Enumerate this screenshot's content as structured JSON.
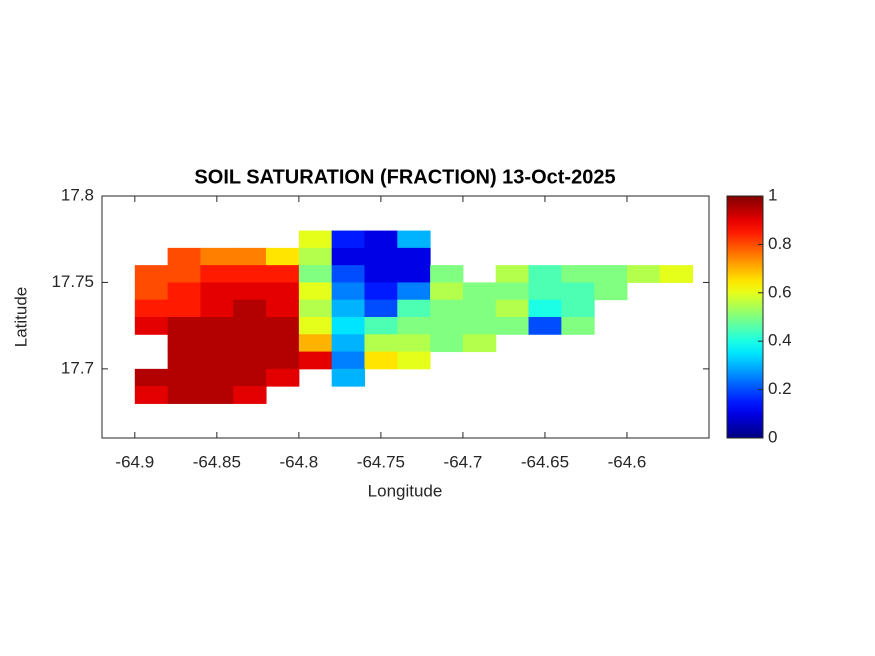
{
  "chart_data": {
    "type": "heatmap",
    "title": "SOIL SATURATION (FRACTION) 13-Oct-2025",
    "x_label": "Longitude",
    "y_label": "Latitude",
    "x": [
      -64.89,
      -64.87,
      -64.85,
      -64.83,
      -64.81,
      -64.79,
      -64.77,
      -64.75,
      -64.73,
      -64.71,
      -64.69,
      -64.67,
      -64.65,
      -64.63,
      -64.61,
      -64.59,
      -64.57
    ],
    "y": [
      17.775,
      17.765,
      17.755,
      17.745,
      17.735,
      17.725,
      17.715,
      17.705,
      17.695,
      17.685
    ],
    "values": [
      [
        null,
        null,
        null,
        null,
        null,
        0.6,
        0.15,
        0.1,
        0.3,
        null,
        null,
        null,
        null,
        null,
        null,
        null,
        null
      ],
      [
        null,
        0.8,
        0.75,
        0.75,
        0.65,
        0.55,
        0.1,
        0.1,
        0.1,
        null,
        null,
        null,
        null,
        null,
        null,
        null,
        null
      ],
      [
        0.8,
        0.8,
        0.85,
        0.85,
        0.85,
        0.5,
        0.2,
        0.1,
        0.1,
        0.5,
        null,
        0.55,
        0.45,
        0.5,
        0.5,
        0.55,
        0.6
      ],
      [
        0.8,
        0.85,
        0.9,
        0.9,
        0.9,
        0.6,
        0.25,
        0.15,
        0.25,
        0.55,
        0.5,
        0.5,
        0.45,
        0.45,
        0.5,
        null,
        null
      ],
      [
        0.85,
        0.85,
        0.9,
        0.95,
        0.9,
        0.55,
        0.3,
        0.2,
        0.45,
        0.5,
        0.5,
        0.55,
        0.4,
        0.45,
        null,
        null,
        null
      ],
      [
        0.9,
        0.95,
        0.95,
        0.95,
        0.95,
        0.6,
        0.35,
        0.45,
        0.5,
        0.5,
        0.5,
        0.5,
        0.2,
        0.5,
        null,
        null,
        null
      ],
      [
        null,
        0.95,
        0.95,
        0.95,
        0.95,
        0.7,
        0.3,
        0.55,
        0.55,
        0.5,
        0.55,
        null,
        null,
        null,
        null,
        null,
        null
      ],
      [
        null,
        0.95,
        0.95,
        0.95,
        0.95,
        0.9,
        0.25,
        0.65,
        0.6,
        null,
        null,
        null,
        null,
        null,
        null,
        null,
        null
      ],
      [
        0.95,
        0.95,
        0.95,
        0.95,
        0.9,
        null,
        0.3,
        null,
        null,
        null,
        null,
        null,
        null,
        null,
        null,
        null,
        null
      ],
      [
        0.9,
        0.95,
        0.95,
        0.9,
        null,
        null,
        null,
        null,
        null,
        null,
        null,
        null,
        null,
        null,
        null,
        null,
        null
      ]
    ],
    "cell_width": 0.02,
    "cell_height": 0.01,
    "xlim": [
      -64.92,
      -64.55
    ],
    "ylim": [
      17.66,
      17.8
    ],
    "xticks": [
      -64.9,
      -64.85,
      -64.8,
      -64.75,
      -64.7,
      -64.65,
      -64.6
    ],
    "yticks": [
      17.7,
      17.75,
      17.8
    ],
    "colormap": "jet",
    "clim": [
      0,
      1
    ],
    "cticks": [
      0,
      0.2,
      0.4,
      0.6,
      0.8,
      1
    ]
  }
}
